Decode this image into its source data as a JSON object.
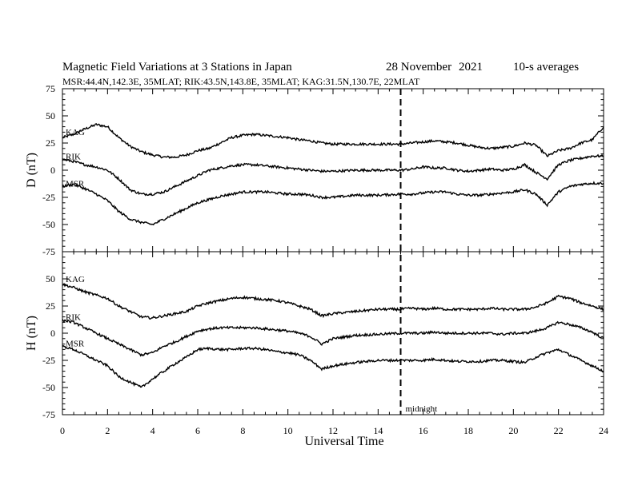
{
  "header": {
    "title": "Magnetic Field Variations at 3 Stations in Japan",
    "date_part1": "28 November",
    "date_part2": "2021",
    "averaging": "10-s averages",
    "subtitle": "MSR:44.4N,142.3E, 35MLAT;  RIK:43.5N,143.8E, 35MLAT;  KAG:31.5N,130.7E, 22MLAT"
  },
  "chart_data": [
    {
      "type": "line",
      "panel": "top",
      "ylabel": "D (nT)",
      "ylim": [
        -75,
        75
      ],
      "yticks": [
        75,
        50,
        25,
        0,
        -25,
        -50,
        -75
      ],
      "xlim": [
        0,
        24
      ],
      "series": [
        {
          "name": "KAG",
          "x": [
            0,
            0.5,
            1,
            1.5,
            2,
            2.5,
            3,
            3.5,
            4,
            4.5,
            5,
            5.5,
            6,
            6.5,
            7,
            7.5,
            8,
            8.5,
            9,
            9.5,
            10,
            10.5,
            11,
            11.5,
            12,
            13,
            14,
            15,
            15.5,
            16,
            16.5,
            17,
            17.5,
            18,
            18.5,
            19,
            19.5,
            20,
            20.5,
            21,
            21.5,
            22,
            22.5,
            23,
            23.5,
            24
          ],
          "values": [
            30,
            33,
            38,
            42,
            40,
            30,
            22,
            17,
            14,
            12,
            12,
            14,
            18,
            20,
            25,
            30,
            32,
            33,
            32,
            31,
            30,
            28,
            27,
            25,
            24,
            24,
            24,
            24,
            25,
            26,
            27,
            26,
            25,
            23,
            21,
            20,
            21,
            22,
            25,
            23,
            13,
            18,
            20,
            25,
            28,
            40
          ]
        },
        {
          "name": "RIK",
          "x": [
            0,
            0.5,
            1,
            1.5,
            2,
            2.5,
            3,
            3.5,
            4,
            4.5,
            5,
            5.5,
            6,
            6.5,
            7,
            7.5,
            8,
            8.5,
            9,
            9.5,
            10,
            10.5,
            11,
            11.5,
            12,
            13,
            14,
            15,
            15.5,
            16,
            16.5,
            17,
            17.5,
            18,
            18.5,
            19,
            19.5,
            20,
            20.5,
            21,
            21.5,
            22,
            22.5,
            23,
            23.5,
            24
          ],
          "values": [
            10,
            8,
            5,
            3,
            0,
            -8,
            -18,
            -22,
            -22,
            -20,
            -15,
            -10,
            -5,
            0,
            2,
            4,
            5,
            5,
            4,
            3,
            2,
            1,
            0,
            -1,
            -1,
            0,
            0,
            0,
            1,
            3,
            2,
            2,
            0,
            -1,
            0,
            1,
            0,
            1,
            5,
            -2,
            -8,
            5,
            9,
            11,
            13,
            13
          ]
        },
        {
          "name": "MSR",
          "x": [
            0,
            0.5,
            1,
            1.5,
            2,
            2.5,
            3,
            3.5,
            4,
            4.5,
            5,
            5.5,
            6,
            6.5,
            7,
            7.5,
            8,
            8.5,
            9,
            9.5,
            10,
            10.5,
            11,
            11.5,
            12,
            13,
            14,
            15,
            15.5,
            16,
            16.5,
            17,
            17.5,
            18,
            18.5,
            19,
            19.5,
            20,
            20.5,
            21,
            21.5,
            22,
            22.5,
            23,
            23.5,
            24
          ],
          "values": [
            -15,
            -13,
            -17,
            -22,
            -28,
            -38,
            -45,
            -48,
            -50,
            -45,
            -40,
            -35,
            -30,
            -27,
            -24,
            -22,
            -20,
            -20,
            -20,
            -21,
            -22,
            -22,
            -23,
            -25,
            -25,
            -23,
            -23,
            -22,
            -22,
            -21,
            -20,
            -20,
            -22,
            -23,
            -23,
            -22,
            -21,
            -20,
            -18,
            -22,
            -32,
            -20,
            -15,
            -13,
            -12,
            -12
          ]
        }
      ]
    },
    {
      "type": "line",
      "panel": "bottom",
      "ylabel": "H (nT)",
      "ylim": [
        -75,
        75
      ],
      "yticks": [
        50,
        25,
        0,
        -25,
        -50,
        -75
      ],
      "xlim": [
        0,
        24
      ],
      "xticks": [
        0,
        2,
        4,
        6,
        8,
        10,
        12,
        14,
        16,
        18,
        20,
        22,
        24
      ],
      "xlabel": "Universal Time",
      "series": [
        {
          "name": "KAG",
          "x": [
            0,
            0.5,
            1,
            1.5,
            2,
            2.5,
            3,
            3.5,
            4,
            4.5,
            5,
            5.5,
            6,
            6.5,
            7,
            7.5,
            8,
            8.5,
            9,
            9.5,
            10,
            10.5,
            11,
            11.5,
            12,
            13,
            14,
            15,
            15.5,
            16,
            16.5,
            17,
            17.5,
            18,
            18.5,
            19,
            19.5,
            20,
            20.5,
            21,
            21.5,
            22,
            22.5,
            23,
            23.5,
            24
          ],
          "values": [
            45,
            42,
            38,
            35,
            32,
            25,
            20,
            15,
            14,
            16,
            18,
            20,
            25,
            28,
            30,
            32,
            33,
            32,
            31,
            30,
            28,
            25,
            22,
            16,
            18,
            20,
            22,
            22,
            23,
            22,
            23,
            22,
            22,
            22,
            22,
            23,
            22,
            22,
            22,
            24,
            28,
            34,
            32,
            28,
            25,
            22
          ]
        },
        {
          "name": "RIK",
          "x": [
            0,
            0.5,
            1,
            1.5,
            2,
            2.5,
            3,
            3.5,
            4,
            4.5,
            5,
            5.5,
            6,
            6.5,
            7,
            7.5,
            8,
            8.5,
            9,
            9.5,
            10,
            10.5,
            11,
            11.5,
            12,
            13,
            14,
            15,
            15.5,
            16,
            16.5,
            17,
            17.5,
            18,
            18.5,
            19,
            19.5,
            20,
            20.5,
            21,
            21.5,
            22,
            22.5,
            23,
            23.5,
            24
          ],
          "values": [
            12,
            10,
            5,
            0,
            -5,
            -10,
            -15,
            -20,
            -18,
            -12,
            -8,
            -3,
            2,
            4,
            5,
            5,
            5,
            5,
            4,
            3,
            2,
            0,
            -3,
            -10,
            -5,
            -2,
            -1,
            0,
            0,
            0,
            1,
            0,
            0,
            0,
            0,
            0,
            -1,
            0,
            0,
            2,
            5,
            10,
            8,
            5,
            1,
            -5
          ]
        },
        {
          "name": "MSR",
          "x": [
            0,
            0.5,
            1,
            1.5,
            2,
            2.5,
            3,
            3.5,
            4,
            4.5,
            5,
            5.5,
            6,
            6.5,
            7,
            7.5,
            8,
            8.5,
            9,
            9.5,
            10,
            10.5,
            11,
            11.5,
            12,
            13,
            14,
            15,
            15.5,
            16,
            16.5,
            17,
            17.5,
            18,
            18.5,
            19,
            19.5,
            20,
            20.5,
            21,
            21.5,
            22,
            22.5,
            23,
            23.5,
            24
          ],
          "values": [
            -12,
            -15,
            -20,
            -25,
            -30,
            -40,
            -45,
            -50,
            -42,
            -35,
            -28,
            -22,
            -15,
            -14,
            -15,
            -15,
            -14,
            -14,
            -15,
            -17,
            -18,
            -20,
            -25,
            -33,
            -30,
            -27,
            -25,
            -25,
            -25,
            -25,
            -24,
            -25,
            -26,
            -26,
            -26,
            -25,
            -25,
            -26,
            -27,
            -22,
            -18,
            -15,
            -20,
            -25,
            -30,
            -35
          ]
        }
      ]
    }
  ],
  "annotations": {
    "midnight_x": 15,
    "midnight_label": "midnight"
  }
}
